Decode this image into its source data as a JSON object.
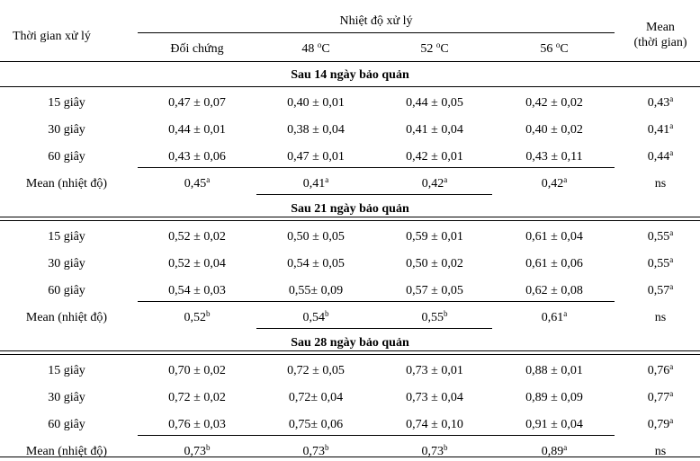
{
  "header": {
    "time_col": "Thời gian xử lý",
    "temp_group": "Nhiệt độ xử lý",
    "mean_line1": "Mean",
    "mean_line2": "(thời gian)",
    "col_control": "Đối chứng",
    "col_48_num": "48",
    "col_52_num": "52",
    "col_56_num": "56",
    "deg_sup": "o",
    "deg_unit": "C"
  },
  "sections": [
    {
      "title": "Sau 14 ngày bảo quản",
      "rows": [
        {
          "label": "15 giây",
          "values": [
            "0,47 ± 0,07",
            "0,40 ± 0,01",
            "0,44 ± 0,05",
            "0,42 ± 0,02"
          ],
          "mean": "0,43",
          "mean_sup": "a"
        },
        {
          "label": "30 giây",
          "values": [
            "0,44 ± 0,01",
            "0,38 ± 0,04",
            "0,41 ± 0,04",
            "0,40 ± 0,02"
          ],
          "mean": "0,41",
          "mean_sup": "a"
        },
        {
          "label": "60 giây",
          "values": [
            "0,43 ± 0,06",
            "0,47 ± 0,01",
            "0,42 ± 0,01",
            "0,43 ± 0,11"
          ],
          "mean": "0,44",
          "mean_sup": "a"
        }
      ],
      "mean_row": {
        "label": "Mean (nhiệt độ)",
        "values": [
          "0,45",
          "0,41",
          "0,42",
          "0,42"
        ],
        "sups": [
          "a",
          "a",
          "a",
          "a"
        ],
        "last": "ns"
      }
    },
    {
      "title": "Sau 21 ngày bảo quản",
      "rows": [
        {
          "label": "15 giây",
          "values": [
            "0,52 ± 0,02",
            "0,50 ± 0,05",
            "0,59 ± 0,01",
            "0,61 ± 0,04"
          ],
          "mean": "0,55",
          "mean_sup": "a"
        },
        {
          "label": "30 giây",
          "values": [
            "0,52 ± 0,04",
            "0,54 ± 0,05",
            "0,50 ± 0,02",
            "0,61 ± 0,06"
          ],
          "mean": "0,55",
          "mean_sup": "a"
        },
        {
          "label": "60 giây",
          "values": [
            "0,54 ± 0,03",
            "0,55± 0,09",
            "0,57 ± 0,05",
            "0,62 ± 0,08"
          ],
          "mean": "0,57",
          "mean_sup": "a"
        }
      ],
      "mean_row": {
        "label": "Mean (nhiệt độ)",
        "values": [
          "0,52",
          "0,54",
          "0,55",
          "0,61"
        ],
        "sups": [
          "b",
          "b",
          "b",
          "a"
        ],
        "last": "ns"
      }
    },
    {
      "title": "Sau 28 ngày bảo quản",
      "rows": [
        {
          "label": "15 giây",
          "values": [
            "0,70 ± 0,02",
            "0,72 ± 0,05",
            "0,73 ± 0,01",
            "0,88 ± 0,01"
          ],
          "mean": "0,76",
          "mean_sup": "a"
        },
        {
          "label": "30 giây",
          "values": [
            "0,72 ± 0,02",
            "0,72± 0,04",
            "0,73 ± 0,04",
            "0,89 ± 0,09"
          ],
          "mean": "0,77",
          "mean_sup": "a"
        },
        {
          "label": "60 giây",
          "values": [
            "0,76 ± 0,03",
            "0,75± 0,06",
            "0,74 ± 0,10",
            "0,91 ± 0,04"
          ],
          "mean": "0,79",
          "mean_sup": "a"
        }
      ],
      "mean_row": {
        "label": "Mean (nhiệt độ)",
        "values": [
          "0,73",
          "0,73",
          "0,73",
          "0,89"
        ],
        "sups": [
          "b",
          "b",
          "b",
          "a"
        ],
        "last": "ns"
      }
    }
  ]
}
